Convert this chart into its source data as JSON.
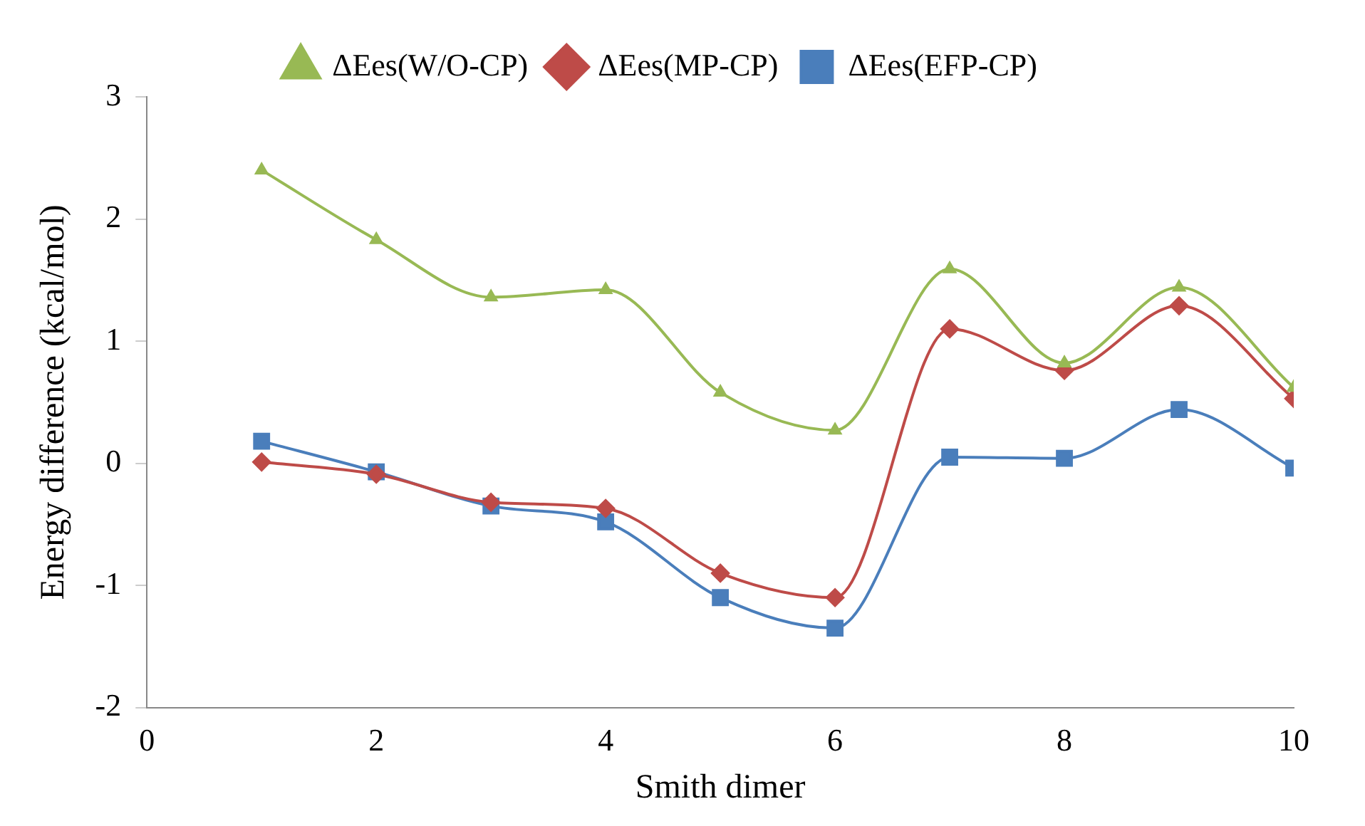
{
  "chart_data": {
    "type": "line",
    "xlabel": "Smith dimer",
    "ylabel": "Energy difference (kcal/mol)",
    "x": [
      1,
      2,
      3,
      4,
      5,
      6,
      7,
      8,
      9,
      10
    ],
    "xlim": [
      0,
      10
    ],
    "xticks": [
      0,
      2,
      4,
      6,
      8,
      10
    ],
    "ylim": [
      -2,
      3
    ],
    "yticks": [
      -2,
      -1,
      0,
      1,
      2,
      3
    ],
    "grid": false,
    "legend": "top",
    "series": [
      {
        "name": "ΔEes(EFP-CP)",
        "color": "#4a7ebb",
        "marker": "square",
        "values": [
          0.18,
          -0.07,
          -0.35,
          -0.48,
          -1.1,
          -1.35,
          0.05,
          0.04,
          0.44,
          -0.04
        ]
      },
      {
        "name": "ΔEes(MP-CP)",
        "color": "#be4b48",
        "marker": "diamond",
        "values": [
          0.01,
          -0.09,
          -0.32,
          -0.37,
          -0.9,
          -1.1,
          1.1,
          0.76,
          1.29,
          0.53
        ]
      },
      {
        "name": "ΔEes(W/O-CP)",
        "color": "#98b954",
        "marker": "triangle",
        "values": [
          2.4,
          1.83,
          1.36,
          1.42,
          0.58,
          0.27,
          1.59,
          0.82,
          1.44,
          0.62
        ]
      }
    ]
  }
}
